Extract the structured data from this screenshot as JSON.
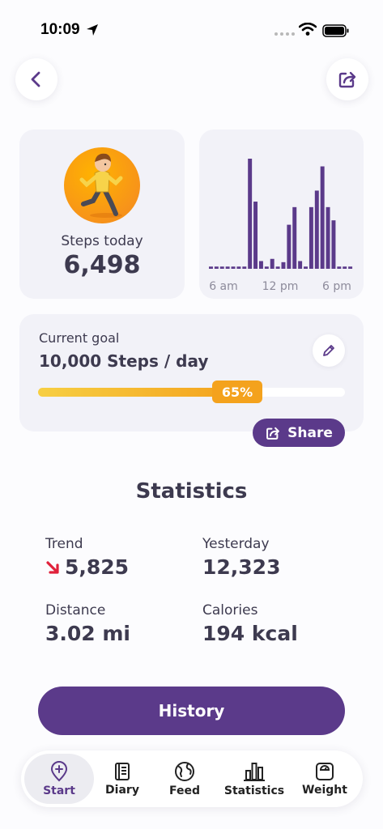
{
  "status_bar": {
    "time": "10:09"
  },
  "header": {
    "back_icon": "chevron-left-icon",
    "share_icon": "share-icon"
  },
  "steps_card": {
    "label": "Steps today",
    "value": "6,498"
  },
  "chart_data": {
    "type": "bar",
    "x_ticks": [
      "6 am",
      "12 pm",
      "6 pm"
    ],
    "values": [
      2,
      2,
      2,
      2,
      2,
      2,
      2,
      100,
      61,
      7,
      2,
      9,
      2,
      6,
      40,
      56,
      7,
      2,
      56,
      71,
      93,
      56,
      44,
      2,
      2,
      2
    ],
    "color": "#5b3a8a"
  },
  "goal": {
    "label": "Current goal",
    "value": "10,000 Steps / day",
    "progress_percent": 65,
    "progress_label": "65%",
    "share_label": "Share"
  },
  "statistics": {
    "title": "Statistics",
    "trend": {
      "label": "Trend",
      "value": "5,825",
      "direction": "down"
    },
    "yesterday": {
      "label": "Yesterday",
      "value": "12,323"
    },
    "distance": {
      "label": "Distance",
      "value": "3.02 mi"
    },
    "calories": {
      "label": "Calories",
      "value": "194 kcal"
    }
  },
  "history_button": "History",
  "tabs": [
    {
      "label": "Start",
      "icon": "pin-plus-icon",
      "active": true
    },
    {
      "label": "Diary",
      "icon": "book-icon"
    },
    {
      "label": "Feed",
      "icon": "globe-icon"
    },
    {
      "label": "Statistics",
      "icon": "bar-chart-icon"
    },
    {
      "label": "Weight",
      "icon": "scale-icon"
    }
  ],
  "colors": {
    "accent": "#5b3a8a",
    "progress": "#f4a21d",
    "trend_down": "#e0203a"
  }
}
